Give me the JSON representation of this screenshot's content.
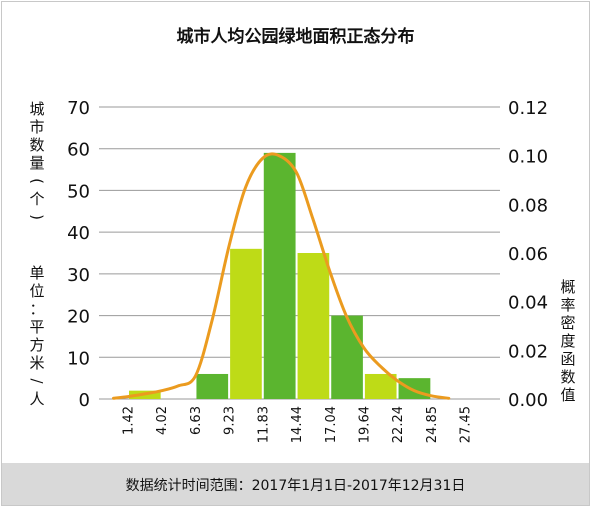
{
  "title": "城市人均公园绿地面积正态分布",
  "left_axis_label_top": "城市数量(个)",
  "left_axis_label_bottom": "单位：平方米/人",
  "right_axis_label": "概率密度函数值",
  "footer": "数据统计时间范围：2017年1月1日-2017年12月31日",
  "colors": {
    "bar_light": "#bedb17",
    "bar_dark": "#5bb52f",
    "curve": "#eb9b1f",
    "grid": "#9a9a9a"
  },
  "chart_data": {
    "type": "bar",
    "title": "城市人均公园绿地面积正态分布",
    "xlabel": "",
    "ylabel": "城市数量(个)",
    "y2label": "概率密度函数值",
    "x_tick_labels": [
      "1.42",
      "4.02",
      "6.63",
      "9.23",
      "11.83",
      "14.44",
      "17.04",
      "19.64",
      "22.24",
      "24.85",
      "27.45"
    ],
    "bins": [
      {
        "from": 1.42,
        "to": 4.02,
        "count": 2,
        "color": "light"
      },
      {
        "from": 4.02,
        "to": 6.63,
        "count": 0,
        "color": "dark"
      },
      {
        "from": 6.63,
        "to": 9.23,
        "count": 6,
        "color": "dark"
      },
      {
        "from": 9.23,
        "to": 11.83,
        "count": 36,
        "color": "light"
      },
      {
        "from": 11.83,
        "to": 14.44,
        "count": 59,
        "color": "dark"
      },
      {
        "from": 14.44,
        "to": 17.04,
        "count": 35,
        "color": "light"
      },
      {
        "from": 17.04,
        "to": 19.64,
        "count": 20,
        "color": "dark"
      },
      {
        "from": 19.64,
        "to": 22.24,
        "count": 6,
        "color": "light"
      },
      {
        "from": 22.24,
        "to": 24.85,
        "count": 5,
        "color": "dark"
      },
      {
        "from": 24.85,
        "to": 27.45,
        "count": 0,
        "color": "light"
      }
    ],
    "ylim": [
      0,
      70
    ],
    "yticks": [
      0,
      10,
      20,
      30,
      40,
      50,
      60,
      70
    ],
    "y2lim": [
      0,
      0.12
    ],
    "y2ticks": [
      "0.00",
      "0.02",
      "0.04",
      "0.06",
      "0.08",
      "0.10",
      "0.12"
    ],
    "curve": {
      "name": "",
      "x": [
        0.3,
        1.42,
        2.7,
        4.02,
        5.3,
        6.63,
        7.9,
        9.23,
        10.5,
        11.83,
        13.1,
        14.44,
        15.7,
        17.04,
        18.3,
        19.64,
        20.9,
        22.24,
        23.5,
        24.85,
        26.2
      ],
      "y": [
        0.0003,
        0.001,
        0.0021,
        0.0034,
        0.0054,
        0.0095,
        0.032,
        0.063,
        0.087,
        0.099,
        0.1,
        0.093,
        0.074,
        0.052,
        0.034,
        0.021,
        0.0135,
        0.0075,
        0.0035,
        0.0013,
        0.0003
      ]
    },
    "grid": true,
    "legend": "none"
  }
}
